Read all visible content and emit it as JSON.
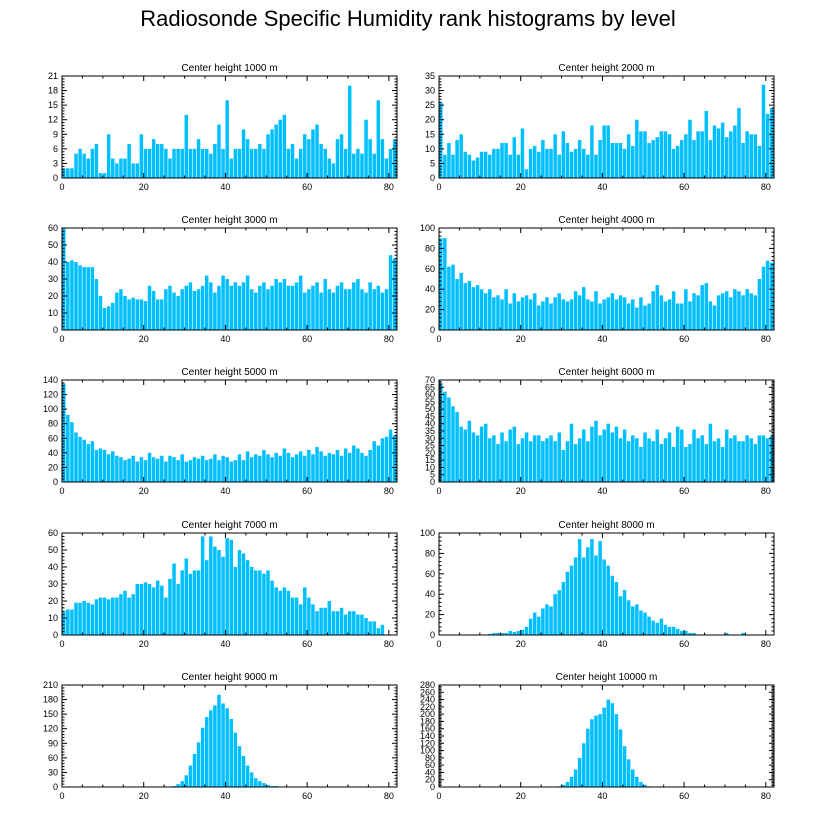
{
  "title": "Radiosonde Specific Humidity rank histograms by level",
  "colors": {
    "bar": "#00bfff",
    "bar_edge": "#ffffff",
    "axis": "#000000"
  },
  "chart_data": [
    {
      "type": "bar",
      "title": "Center height 1000 m",
      "xlim": [
        0,
        82
      ],
      "xticks": [
        0,
        20,
        40,
        60,
        80
      ],
      "ylim": [
        0,
        21
      ],
      "yticks": [
        0,
        3,
        6,
        9,
        12,
        15,
        18,
        21
      ],
      "values": [
        2,
        2,
        2,
        5,
        6,
        5,
        4,
        6,
        7,
        1,
        1,
        9,
        4,
        3,
        4,
        4,
        7,
        3,
        3,
        9,
        6,
        6,
        8,
        7,
        7,
        6,
        4,
        6,
        6,
        6,
        13,
        6,
        6,
        8,
        6,
        6,
        5,
        7,
        11,
        6,
        16,
        4,
        6,
        6,
        10,
        8,
        6,
        6,
        7,
        6,
        9,
        10,
        11,
        12,
        13,
        6,
        7,
        4,
        6,
        9,
        8,
        10,
        11,
        7,
        6,
        4,
        3,
        8,
        9,
        6,
        19,
        5,
        6,
        5,
        12,
        8,
        5,
        16,
        8,
        4,
        6,
        8
      ]
    },
    {
      "type": "bar",
      "title": "Center height 2000 m",
      "xlim": [
        0,
        82
      ],
      "xticks": [
        0,
        20,
        40,
        60,
        80
      ],
      "ylim": [
        0,
        35
      ],
      "yticks": [
        0,
        5,
        10,
        15,
        20,
        25,
        30,
        35
      ],
      "values": [
        26,
        8,
        12,
        8,
        13,
        15,
        9,
        8,
        6,
        7,
        9,
        9,
        8,
        10,
        10,
        12,
        12,
        8,
        14,
        8,
        17,
        3,
        10,
        11,
        9,
        13,
        10,
        10,
        15,
        8,
        16,
        12,
        9,
        10,
        13,
        10,
        8,
        18,
        8,
        13,
        18,
        18,
        12,
        12,
        12,
        10,
        15,
        11,
        20,
        16,
        16,
        12,
        13,
        14,
        16,
        16,
        15,
        10,
        11,
        13,
        15,
        20,
        13,
        16,
        16,
        23,
        13,
        18,
        17,
        19,
        14,
        16,
        18,
        24,
        12,
        16,
        15,
        15,
        11,
        32,
        22,
        24
      ]
    },
    {
      "type": "bar",
      "title": "Center height 3000 m",
      "xlim": [
        0,
        82
      ],
      "xticks": [
        0,
        20,
        40,
        60,
        80
      ],
      "ylim": [
        0,
        60
      ],
      "yticks": [
        0,
        10,
        20,
        30,
        40,
        50,
        60
      ],
      "values": [
        60,
        40,
        41,
        40,
        38,
        37,
        37,
        37,
        30,
        20,
        13,
        14,
        16,
        22,
        24,
        20,
        18,
        19,
        18,
        18,
        17,
        26,
        23,
        18,
        18,
        24,
        26,
        22,
        20,
        24,
        26,
        28,
        23,
        24,
        26,
        32,
        28,
        22,
        26,
        32,
        30,
        26,
        28,
        26,
        28,
        32,
        24,
        22,
        26,
        28,
        24,
        26,
        30,
        28,
        30,
        26,
        26,
        28,
        32,
        22,
        24,
        26,
        28,
        22,
        30,
        24,
        22,
        26,
        28,
        24,
        24,
        28,
        30,
        24,
        22,
        28,
        24,
        26,
        22,
        24,
        44,
        42
      ]
    },
    {
      "type": "bar",
      "title": "Center height 4000 m",
      "xlim": [
        0,
        82
      ],
      "xticks": [
        0,
        20,
        40,
        60,
        80
      ],
      "ylim": [
        0,
        100
      ],
      "yticks": [
        0,
        20,
        40,
        60,
        80,
        100
      ],
      "values": [
        90,
        90,
        62,
        64,
        50,
        56,
        46,
        48,
        42,
        44,
        40,
        36,
        40,
        32,
        34,
        30,
        40,
        26,
        36,
        28,
        32,
        34,
        30,
        36,
        24,
        28,
        32,
        26,
        32,
        36,
        30,
        28,
        30,
        38,
        34,
        42,
        30,
        28,
        38,
        26,
        30,
        32,
        36,
        30,
        34,
        32,
        26,
        30,
        22,
        32,
        24,
        26,
        38,
        44,
        34,
        28,
        30,
        38,
        26,
        26,
        40,
        28,
        36,
        34,
        44,
        46,
        28,
        24,
        34,
        36,
        38,
        32,
        40,
        38,
        34,
        40,
        36,
        34,
        50,
        62,
        68,
        66
      ]
    },
    {
      "type": "bar",
      "title": "Center height 5000 m",
      "xlim": [
        0,
        82
      ],
      "xticks": [
        0,
        20,
        40,
        60,
        80
      ],
      "ylim": [
        0,
        140
      ],
      "yticks": [
        0,
        20,
        40,
        60,
        80,
        100,
        120,
        140
      ],
      "values": [
        135,
        92,
        82,
        68,
        62,
        58,
        52,
        56,
        44,
        46,
        44,
        38,
        42,
        36,
        34,
        30,
        32,
        36,
        28,
        34,
        30,
        40,
        34,
        32,
        36,
        28,
        36,
        34,
        30,
        38,
        28,
        30,
        34,
        32,
        36,
        30,
        32,
        38,
        30,
        36,
        34,
        28,
        30,
        38,
        30,
        42,
        34,
        38,
        36,
        44,
        38,
        34,
        40,
        36,
        46,
        40,
        34,
        38,
        42,
        36,
        44,
        38,
        48,
        42,
        36,
        40,
        38,
        44,
        36,
        46,
        40,
        50,
        46,
        40,
        36,
        44,
        56,
        50,
        60,
        62,
        72,
        64
      ]
    },
    {
      "type": "bar",
      "title": "Center height 6000 m",
      "xlim": [
        0,
        82
      ],
      "xticks": [
        0,
        20,
        40,
        60,
        80
      ],
      "ylim": [
        0,
        70
      ],
      "yticks": [
        0,
        5,
        10,
        15,
        20,
        25,
        30,
        35,
        40,
        45,
        50,
        55,
        60,
        65,
        70
      ],
      "values": [
        68,
        62,
        58,
        52,
        48,
        38,
        36,
        42,
        34,
        32,
        38,
        40,
        30,
        32,
        26,
        34,
        28,
        36,
        38,
        26,
        30,
        34,
        28,
        32,
        32,
        28,
        30,
        32,
        28,
        34,
        22,
        28,
        40,
        26,
        30,
        36,
        28,
        38,
        42,
        32,
        36,
        40,
        34,
        38,
        30,
        36,
        28,
        32,
        30,
        24,
        34,
        30,
        28,
        36,
        26,
        30,
        34,
        24,
        38,
        36,
        24,
        26,
        36,
        30,
        32,
        26,
        40,
        28,
        30,
        24,
        36,
        30,
        32,
        28,
        28,
        32,
        30,
        26,
        32,
        32,
        30,
        32
      ]
    },
    {
      "type": "bar",
      "title": "Center height 7000 m",
      "xlim": [
        0,
        82
      ],
      "xticks": [
        0,
        20,
        40,
        60,
        80
      ],
      "ylim": [
        0,
        60
      ],
      "yticks": [
        0,
        10,
        20,
        30,
        40,
        50,
        60
      ],
      "values": [
        14,
        15,
        15,
        19,
        19,
        20,
        19,
        18,
        21,
        22,
        22,
        21,
        22,
        22,
        24,
        26,
        22,
        24,
        30,
        30,
        31,
        30,
        28,
        32,
        29,
        22,
        33,
        42,
        30,
        38,
        45,
        36,
        38,
        38,
        58,
        44,
        58,
        52,
        50,
        46,
        57,
        56,
        40,
        50,
        48,
        44,
        40,
        38,
        38,
        36,
        38,
        32,
        28,
        26,
        28,
        26,
        22,
        22,
        18,
        28,
        22,
        18,
        14,
        16,
        16,
        20,
        14,
        14,
        16,
        12,
        14,
        14,
        12,
        12,
        10,
        8,
        8,
        4,
        6,
        0,
        0,
        0
      ]
    },
    {
      "type": "bar",
      "title": "Center height 8000 m",
      "xlim": [
        0,
        82
      ],
      "xticks": [
        0,
        20,
        40,
        60,
        80
      ],
      "ylim": [
        0,
        100
      ],
      "yticks": [
        0,
        20,
        40,
        60,
        80,
        100
      ],
      "values": [
        0,
        0,
        0,
        0,
        0,
        0,
        0,
        0,
        0,
        0,
        0,
        0,
        1,
        2,
        2,
        2,
        2,
        4,
        3,
        4,
        5,
        8,
        16,
        22,
        18,
        26,
        30,
        28,
        40,
        44,
        52,
        62,
        68,
        76,
        94,
        76,
        86,
        94,
        78,
        92,
        74,
        68,
        58,
        52,
        38,
        44,
        34,
        28,
        30,
        24,
        22,
        18,
        14,
        12,
        16,
        10,
        8,
        8,
        6,
        4,
        4,
        2,
        2,
        0,
        0,
        0,
        0,
        0,
        0,
        0,
        2,
        0,
        0,
        0,
        2,
        0,
        0,
        0,
        0,
        0,
        0,
        0
      ]
    },
    {
      "type": "bar",
      "title": "Center height 9000 m",
      "xlim": [
        0,
        82
      ],
      "xticks": [
        0,
        20,
        40,
        60,
        80
      ],
      "ylim": [
        0,
        210
      ],
      "yticks": [
        0,
        30,
        60,
        90,
        120,
        150,
        180,
        210
      ],
      "values": [
        0,
        0,
        0,
        0,
        0,
        0,
        0,
        0,
        0,
        0,
        0,
        0,
        0,
        0,
        0,
        0,
        0,
        0,
        0,
        0,
        0,
        0,
        0,
        0,
        0,
        0,
        0,
        2,
        6,
        12,
        24,
        44,
        68,
        92,
        122,
        144,
        158,
        168,
        190,
        172,
        162,
        140,
        112,
        84,
        64,
        44,
        30,
        18,
        12,
        8,
        4,
        2,
        2,
        0,
        0,
        0,
        0,
        0,
        0,
        0,
        0,
        0,
        0,
        0,
        0,
        0,
        0,
        0,
        0,
        0,
        0,
        0,
        0,
        0,
        0,
        0,
        0,
        0,
        0,
        0,
        0,
        0
      ]
    },
    {
      "type": "bar",
      "title": "Center height 10000 m",
      "xlim": [
        0,
        82
      ],
      "xticks": [
        0,
        20,
        40,
        60,
        80
      ],
      "ylim": [
        0,
        280
      ],
      "yticks": [
        0,
        20,
        40,
        60,
        80,
        100,
        120,
        140,
        160,
        180,
        200,
        220,
        240,
        260,
        280
      ],
      "values": [
        0,
        0,
        0,
        0,
        0,
        0,
        0,
        0,
        0,
        0,
        0,
        0,
        0,
        0,
        0,
        0,
        0,
        0,
        0,
        0,
        0,
        0,
        0,
        0,
        0,
        0,
        0,
        0,
        0,
        2,
        6,
        14,
        28,
        48,
        80,
        120,
        160,
        186,
        196,
        200,
        218,
        240,
        230,
        200,
        158,
        112,
        76,
        48,
        28,
        14,
        6,
        2,
        0,
        0,
        0,
        0,
        0,
        0,
        0,
        0,
        0,
        0,
        0,
        0,
        0,
        0,
        0,
        0,
        0,
        0,
        0,
        0,
        0,
        0,
        0,
        0,
        0,
        0,
        0,
        0,
        0,
        0
      ]
    }
  ]
}
